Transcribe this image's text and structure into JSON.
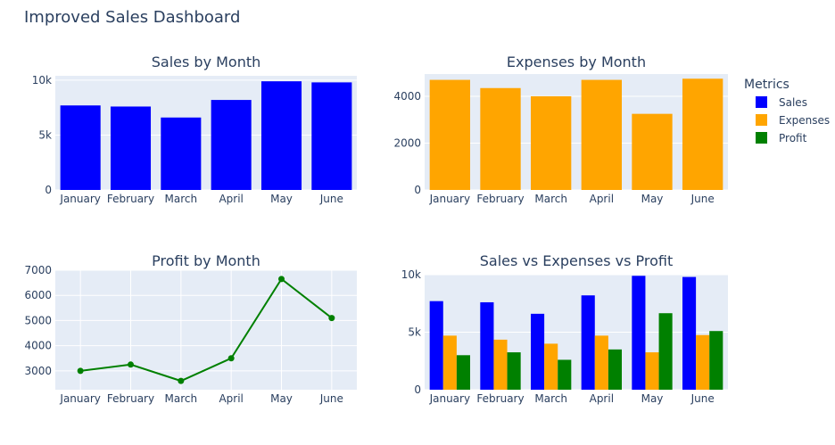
{
  "title": "Improved Sales Dashboard",
  "colors": {
    "sales": "#0000ff",
    "expenses": "#ffa500",
    "profit": "#008000",
    "plot_bg": "#e5ecf6",
    "grid": "#ffffff"
  },
  "legend": {
    "title": "Metrics",
    "items": [
      {
        "label": "Sales",
        "color": "#0000ff"
      },
      {
        "label": "Expenses",
        "color": "#ffa500"
      },
      {
        "label": "Profit",
        "color": "#008000"
      }
    ]
  },
  "chart_data": [
    {
      "id": "sales",
      "type": "bar",
      "title": "Sales by Month",
      "categories": [
        "January",
        "February",
        "March",
        "April",
        "May",
        "June"
      ],
      "series": [
        {
          "name": "Sales",
          "values": [
            7700,
            7600,
            6600,
            8200,
            9900,
            9800
          ]
        }
      ],
      "ylim": [
        0,
        10400
      ],
      "yticks": [
        {
          "v": 0,
          "label": "0"
        },
        {
          "v": 5000,
          "label": "5k"
        },
        {
          "v": 10000,
          "label": "10k"
        }
      ],
      "grid": true
    },
    {
      "id": "expenses",
      "type": "bar",
      "title": "Expenses by Month",
      "categories": [
        "January",
        "February",
        "March",
        "April",
        "May",
        "June"
      ],
      "series": [
        {
          "name": "Expenses",
          "values": [
            4700,
            4350,
            4000,
            4700,
            3250,
            4750
          ]
        }
      ],
      "ylim": [
        0,
        4950
      ],
      "yticks": [
        {
          "v": 0,
          "label": "0"
        },
        {
          "v": 2000,
          "label": "2000"
        },
        {
          "v": 4000,
          "label": "4000"
        }
      ],
      "grid": true
    },
    {
      "id": "profit",
      "type": "line",
      "title": "Profit by Month",
      "categories": [
        "January",
        "February",
        "March",
        "April",
        "May",
        "June"
      ],
      "series": [
        {
          "name": "Profit",
          "values": [
            3000,
            3250,
            2600,
            3500,
            6650,
            5100
          ]
        }
      ],
      "ylim": [
        2250,
        7000
      ],
      "yticks": [
        {
          "v": 3000,
          "label": "3000"
        },
        {
          "v": 4000,
          "label": "4000"
        },
        {
          "v": 5000,
          "label": "5000"
        },
        {
          "v": 6000,
          "label": "6000"
        },
        {
          "v": 7000,
          "label": "7000"
        }
      ],
      "grid": true
    },
    {
      "id": "combined",
      "type": "bar",
      "title": "Sales vs Expenses vs Profit",
      "categories": [
        "January",
        "February",
        "March",
        "April",
        "May",
        "June"
      ],
      "series": [
        {
          "name": "Sales",
          "values": [
            7700,
            7600,
            6600,
            8200,
            9900,
            9800
          ]
        },
        {
          "name": "Expenses",
          "values": [
            4700,
            4350,
            4000,
            4700,
            3250,
            4750
          ]
        },
        {
          "name": "Profit",
          "values": [
            3000,
            3250,
            2600,
            3500,
            6650,
            5100
          ]
        }
      ],
      "ylim": [
        0,
        10000
      ],
      "yticks": [
        {
          "v": 0,
          "label": "0"
        },
        {
          "v": 5000,
          "label": "5k"
        },
        {
          "v": 10000,
          "label": "10k"
        }
      ],
      "grid": true
    }
  ]
}
